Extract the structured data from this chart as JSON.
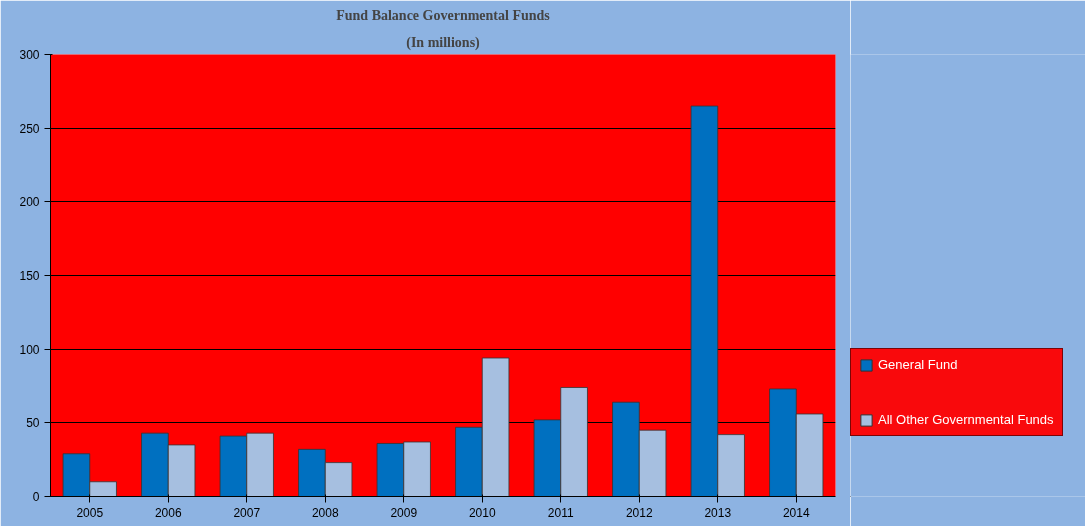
{
  "chart_data": {
    "type": "bar",
    "title": "Fund Balance Governmental Funds",
    "subtitle": "(In millions)",
    "categories": [
      "2005",
      "2006",
      "2007",
      "2008",
      "2009",
      "2010",
      "2011",
      "2012",
      "2013",
      "2014"
    ],
    "series": [
      {
        "name": "General Fund",
        "color": "#0070c0",
        "values": [
          29,
          43,
          41,
          32,
          36,
          47,
          52,
          64,
          265,
          73
        ]
      },
      {
        "name": "All Other Governmental Funds",
        "color": "#a6bfe0",
        "values": [
          10,
          35,
          43,
          23,
          37,
          94,
          74,
          45,
          42,
          56
        ]
      }
    ],
    "ylim": [
      0,
      300
    ],
    "yticks": [
      0,
      50,
      100,
      150,
      200,
      250,
      300
    ],
    "grid": "y",
    "legend": "right"
  }
}
